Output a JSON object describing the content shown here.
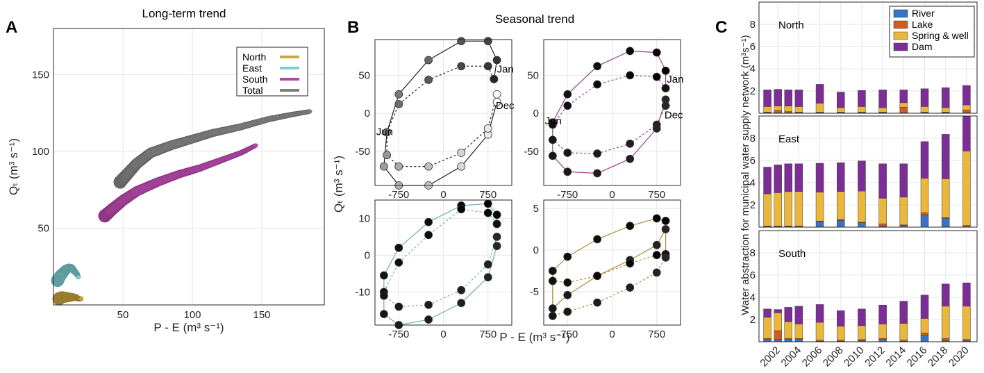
{
  "panel_labels": [
    "A",
    "B",
    "C"
  ],
  "chart_data": [
    {
      "panel": "A",
      "type": "scatter",
      "title": "Long-term trend",
      "xlabel": "P - E (m³ s⁻¹)",
      "ylabel": "Qₜ (m³ s⁻¹)",
      "xlim": [
        0,
        195
      ],
      "ylim": [
        0,
        180
      ],
      "xticks": [
        50,
        100,
        150
      ],
      "yticks": [
        50,
        100,
        150
      ],
      "grid": true,
      "legend_position": "top-right",
      "series": [
        {
          "name": "North",
          "color": "#c9a640",
          "points": [
            [
              4,
              4
            ],
            [
              6,
              5
            ],
            [
              8,
              5
            ],
            [
              10,
              5
            ],
            [
              12,
              5
            ],
            [
              14,
              5
            ],
            [
              16,
              5
            ],
            [
              18,
              4
            ],
            [
              20,
              4
            ]
          ]
        },
        {
          "name": "East",
          "color": "#7fcfd2",
          "points": [
            [
              3,
              16
            ],
            [
              5,
              19
            ],
            [
              7,
              21
            ],
            [
              9,
              23
            ],
            [
              11,
              24
            ],
            [
              13,
              24
            ],
            [
              15,
              22
            ],
            [
              17,
              20
            ],
            [
              18,
              18
            ]
          ]
        },
        {
          "name": "South",
          "color": "#b347a6",
          "points": [
            [
              37,
              58
            ],
            [
              42,
              62
            ],
            [
              50,
              68
            ],
            [
              60,
              74
            ],
            [
              75,
              80
            ],
            [
              90,
              85
            ],
            [
              105,
              89
            ],
            [
              120,
              94
            ],
            [
              135,
              99
            ],
            [
              146,
              104
            ]
          ]
        },
        {
          "name": "Total",
          "color": "#7f7f7f",
          "points": [
            [
              48,
              80
            ],
            [
              53,
              85
            ],
            [
              60,
              92
            ],
            [
              70,
              99
            ],
            [
              85,
              104
            ],
            [
              100,
              108
            ],
            [
              115,
              112
            ],
            [
              135,
              116
            ],
            [
              155,
              121
            ],
            [
              172,
              124
            ],
            [
              185,
              126
            ]
          ]
        }
      ]
    },
    {
      "panel": "B",
      "type": "line",
      "title": "Seasonal trend",
      "xlabel": "P - E (m³ s⁻¹)",
      "ylabel": "Qₜ (m³ s⁻¹)",
      "subplots": [
        {
          "id": "total",
          "color": "#595959",
          "xlim": [
            -1150,
            1150
          ],
          "ylim": [
            -95,
            97
          ],
          "xticks": [
            -750,
            0,
            750
          ],
          "yticks": [
            -50,
            0,
            50
          ],
          "annotations": [
            {
              "text": "Jan",
              "x": 900,
              "y": 58
            },
            {
              "text": "Dec",
              "x": 880,
              "y": 10
            },
            {
              "text": "Jun",
              "x": -1130,
              "y": -24
            }
          ],
          "solid": [
            [
              850,
              45
            ],
            [
              900,
              70
            ],
            [
              750,
              95
            ],
            [
              300,
              95
            ],
            [
              -250,
              70
            ],
            [
              -750,
              25
            ],
            [
              -950,
              -25
            ],
            [
              -1000,
              -70
            ],
            [
              -750,
              -95
            ],
            [
              -250,
              -95
            ],
            [
              300,
              -70
            ],
            [
              750,
              -28
            ],
            [
              900,
              15
            ]
          ],
          "dashed": [
            [
              850,
              45
            ],
            [
              750,
              62
            ],
            [
              300,
              62
            ],
            [
              -250,
              44
            ],
            [
              -750,
              12
            ],
            [
              -950,
              -25
            ],
            [
              -950,
              -55
            ],
            [
              -750,
              -70
            ],
            [
              -250,
              -70
            ],
            [
              300,
              -52
            ],
            [
              750,
              -20
            ],
            [
              900,
              25
            ]
          ]
        },
        {
          "id": "south",
          "color": "#b347a6",
          "xlim": [
            -1150,
            1150
          ],
          "ylim": [
            -95,
            97
          ],
          "xticks": [
            -750,
            0,
            750
          ],
          "yticks": [
            -50,
            0,
            50
          ],
          "annotations": [
            {
              "text": "Jan",
              "x": 920,
              "y": 45
            },
            {
              "text": "Dec",
              "x": 880,
              "y": -2
            },
            {
              "text": "Jun",
              "x": -1130,
              "y": -10
            }
          ],
          "solid": [
            [
              900,
              33
            ],
            [
              900,
              56
            ],
            [
              750,
              80
            ],
            [
              300,
              82
            ],
            [
              -250,
              62
            ],
            [
              -750,
              25
            ],
            [
              -1000,
              -12
            ],
            [
              -1000,
              -56
            ],
            [
              -750,
              -77
            ],
            [
              -250,
              -79
            ],
            [
              300,
              -60
            ],
            [
              750,
              -20
            ],
            [
              900,
              18
            ]
          ],
          "dashed": [
            [
              900,
              33
            ],
            [
              750,
              48
            ],
            [
              300,
              50
            ],
            [
              -250,
              38
            ],
            [
              -750,
              10
            ],
            [
              -1000,
              -15
            ],
            [
              -1000,
              -35
            ],
            [
              -750,
              -52
            ],
            [
              -250,
              -53
            ],
            [
              300,
              -40
            ],
            [
              750,
              -15
            ],
            [
              900,
              10
            ]
          ]
        },
        {
          "id": "east",
          "color": "#7fcfd2",
          "xlim": [
            -1150,
            1150
          ],
          "ylim": [
            -19,
            15
          ],
          "xticks": [
            -750,
            0,
            750
          ],
          "yticks": [
            -10,
            0,
            10
          ],
          "annotations": [],
          "solid": [
            [
              900,
              8.5
            ],
            [
              900,
              11
            ],
            [
              750,
              14
            ],
            [
              300,
              13.5
            ],
            [
              -250,
              9
            ],
            [
              -750,
              2
            ],
            [
              -1000,
              -5.5
            ],
            [
              -1000,
              -16
            ],
            [
              -750,
              -19
            ],
            [
              -250,
              -17.5
            ],
            [
              300,
              -13
            ],
            [
              750,
              -6
            ],
            [
              900,
              2.5
            ]
          ],
          "dashed": [
            [
              900,
              8.5
            ],
            [
              750,
              11.5
            ],
            [
              300,
              12.5
            ],
            [
              -250,
              5.5
            ],
            [
              -750,
              -2
            ],
            [
              -1000,
              -10
            ],
            [
              -1000,
              -11
            ],
            [
              -750,
              -14
            ],
            [
              -250,
              -13.5
            ],
            [
              300,
              -9.5
            ],
            [
              750,
              -2.5
            ],
            [
              900,
              5
            ]
          ]
        },
        {
          "id": "north",
          "color": "#c9a640",
          "xlim": [
            -1150,
            1150
          ],
          "ylim": [
            -9,
            6
          ],
          "xticks": [
            -750,
            0,
            750
          ],
          "yticks": [
            -5,
            0,
            5
          ],
          "annotations": [],
          "solid": [
            [
              900,
              -0.5
            ],
            [
              900,
              3.5
            ],
            [
              750,
              3.8
            ],
            [
              300,
              2.9
            ],
            [
              -250,
              1.3
            ],
            [
              -750,
              -0.8
            ],
            [
              -1000,
              -2.5
            ],
            [
              -1000,
              -7
            ],
            [
              -750,
              -5.4
            ],
            [
              -250,
              -3.1
            ],
            [
              300,
              -1.2
            ],
            [
              750,
              0.6
            ],
            [
              900,
              2.5
            ]
          ],
          "dashed": [
            [
              900,
              -0.5
            ],
            [
              750,
              -0.6
            ],
            [
              300,
              -1.6
            ],
            [
              -250,
              -3.1
            ],
            [
              -750,
              -3.9
            ],
            [
              -1000,
              -3.7
            ],
            [
              -1000,
              -7.9
            ],
            [
              -750,
              -7.4
            ],
            [
              -250,
              -6.3
            ],
            [
              300,
              -4.5
            ],
            [
              750,
              -2.7
            ],
            [
              900,
              -0.9
            ]
          ]
        }
      ]
    },
    {
      "panel": "C",
      "type": "bar",
      "stacked": true,
      "ylabel": "Water abstraction for municipal water supply network (m³s⁻¹)",
      "ylim": [
        0,
        10
      ],
      "yticks": [
        2,
        4,
        6,
        8
      ],
      "legend_position": "top-right",
      "years": [
        2001,
        2002,
        2003,
        2004,
        2006,
        2008,
        2010,
        2012,
        2014,
        2016,
        2018,
        2020
      ],
      "xtick_labels": [
        "2002",
        "2004",
        "2006",
        "2008",
        "2010",
        "2012",
        "2014",
        "2016",
        "2018",
        "2020"
      ],
      "xtick_years": [
        2002,
        2004,
        2006,
        2008,
        2010,
        2012,
        2014,
        2016,
        2018,
        2020
      ],
      "categories": [
        {
          "name": "River",
          "color": "#3a73c0"
        },
        {
          "name": "Lake",
          "color": "#d35a21"
        },
        {
          "name": "Spring & well",
          "color": "#ebb73a"
        },
        {
          "name": "Dam",
          "color": "#7d2e96"
        }
      ],
      "regions": [
        {
          "name": "North",
          "values": [
            [
              0.05,
              0.05,
              0.5,
              1.5
            ],
            [
              0.05,
              0.2,
              0.4,
              1.5
            ],
            [
              0.05,
              0.1,
              0.5,
              1.45
            ],
            [
              0.05,
              0.05,
              0.5,
              1.5
            ],
            [
              0.05,
              0.05,
              0.8,
              1.7
            ],
            [
              0.05,
              0.05,
              0.4,
              1.4
            ],
            [
              0.05,
              0.05,
              0.5,
              1.45
            ],
            [
              0.05,
              0.05,
              0.4,
              1.6
            ],
            [
              0.05,
              0.5,
              0.4,
              1.15
            ],
            [
              0.05,
              0.05,
              0.5,
              1.6
            ],
            [
              0.05,
              0.05,
              0.4,
              1.8
            ],
            [
              0.05,
              0.25,
              0.45,
              1.75
            ]
          ]
        },
        {
          "name": "East",
          "values": [
            [
              0.05,
              0.05,
              2.9,
              2.4
            ],
            [
              0.05,
              0.05,
              3.0,
              2.5
            ],
            [
              0.05,
              0.05,
              3.1,
              2.5
            ],
            [
              0.05,
              0.05,
              3.1,
              2.5
            ],
            [
              0.5,
              0.05,
              2.6,
              2.6
            ],
            [
              0.6,
              0.1,
              2.5,
              2.6
            ],
            [
              0.4,
              0.05,
              2.8,
              2.7
            ],
            [
              0.1,
              0.2,
              2.3,
              3.1
            ],
            [
              0.15,
              0.05,
              2.5,
              3.0
            ],
            [
              1.1,
              0.2,
              3.1,
              3.3
            ],
            [
              0.8,
              0.05,
              3.5,
              4.0
            ],
            [
              0.05,
              0.1,
              6.7,
              3.2
            ]
          ]
        },
        {
          "name": "South",
          "values": [
            [
              0.2,
              0.1,
              1.9,
              0.75
            ],
            [
              0.2,
              0.8,
              1.6,
              0.3
            ],
            [
              0.2,
              0.1,
              1.5,
              1.3
            ],
            [
              0.2,
              0.1,
              1.3,
              1.6
            ],
            [
              0.05,
              0.1,
              1.6,
              1.6
            ],
            [
              0.05,
              0.1,
              1.25,
              1.4
            ],
            [
              0.1,
              0.1,
              1.25,
              1.5
            ],
            [
              0.2,
              0.1,
              1.3,
              1.7
            ],
            [
              0.05,
              0.1,
              1.5,
              2.0
            ],
            [
              0.6,
              0.2,
              1.3,
              2.1
            ],
            [
              0.1,
              0.2,
              2.9,
              2.0
            ],
            [
              0.1,
              0.1,
              3.0,
              2.1
            ]
          ]
        }
      ]
    }
  ]
}
